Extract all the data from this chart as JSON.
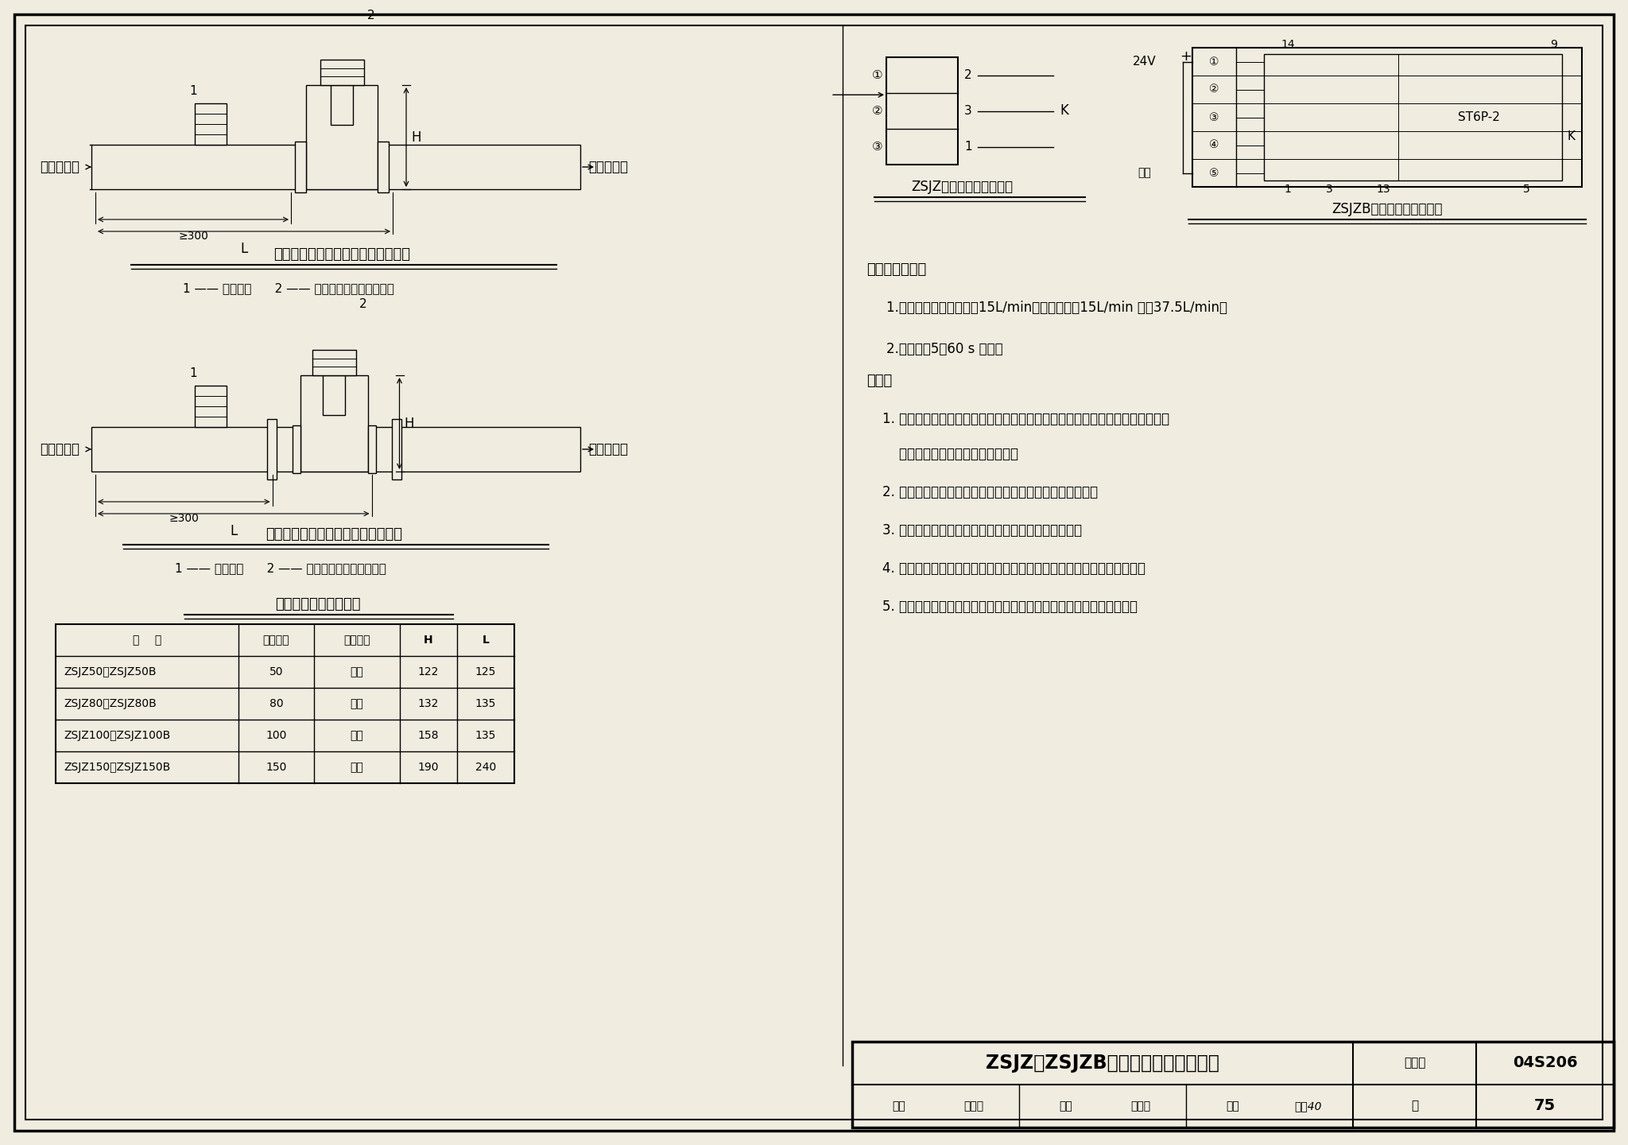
{
  "bg_color": "#f0ece0",
  "title_main": "ZSJZ、ZSJZB系列水流指示器安装图",
  "page_label": "图集号",
  "page_code": "04S206",
  "page_num_label": "页",
  "page_num": "75",
  "review_label": "审核",
  "check_label": "校对",
  "design_label": "设计",
  "diagram1_title": "水流指示器安装图（丝扣连接方式）",
  "diagram1_legend": "1 —— 信号蝶阀      2 —— 水流指示器（丝扣连接）",
  "diagram2_title": "水流指示器安装图（法兰连接方式）",
  "diagram2_legend": "1 —— 信号蝶阀      2 —— 水流指示器（法兰连接）",
  "table_title": "水流指示器安装尺寸表",
  "table_headers": [
    "型    号",
    "公称直径",
    "连接形式",
    "H",
    "L"
  ],
  "table_rows": [
    [
      "ZSJZ50、ZSJZ50B",
      "50",
      "丝扣",
      "122",
      "125"
    ],
    [
      "ZSJZ80、ZSJZ80B",
      "80",
      "丝扣",
      "132",
      "135"
    ],
    [
      "ZSJZ100、ZSJZ100B",
      "100",
      "法兰",
      "158",
      "135"
    ],
    [
      "ZSJZ150、ZSJZ150B",
      "150",
      "法兰",
      "190",
      "240"
    ]
  ],
  "circuit1_title": "ZSJZ型水流指示器接线图",
  "circuit2_title": "ZSJZB型水流指示器接线图",
  "params_title": "主要性能参数：",
  "param1": "1.灵敏度：不报警流量＜15L/min；报警流量＞15L/min 且＜37.5L/min。",
  "param2": "2.延时时间5～60 s 可调。",
  "notes_title": "说明：",
  "note1a": "1. 除报警阀组控制的喂头只保护不超过防火分区面积的同层处所外，每个防火分",
  "note1b": "    区、每个楼层均应设水流指示器。",
  "note2": "2. 仓库内顶板下喂头与货架内喂头应分别设置水流指示器。",
  "note3": "3. 水流指示器的安装应在管道试压和冲洗合格后进行。",
  "note4": "4. 水流指示器应垂直安装在水平管道上，其动作方向应和水流方向一致。",
  "note5": "5. 安装后的水流指示器浆片、膜片应动作灵活，不应与管壁发生摩擦。",
  "left_label": "接供水管网",
  "right_label": "接喂头管网",
  "dim_ge300": "≥300",
  "changkai": "常开"
}
